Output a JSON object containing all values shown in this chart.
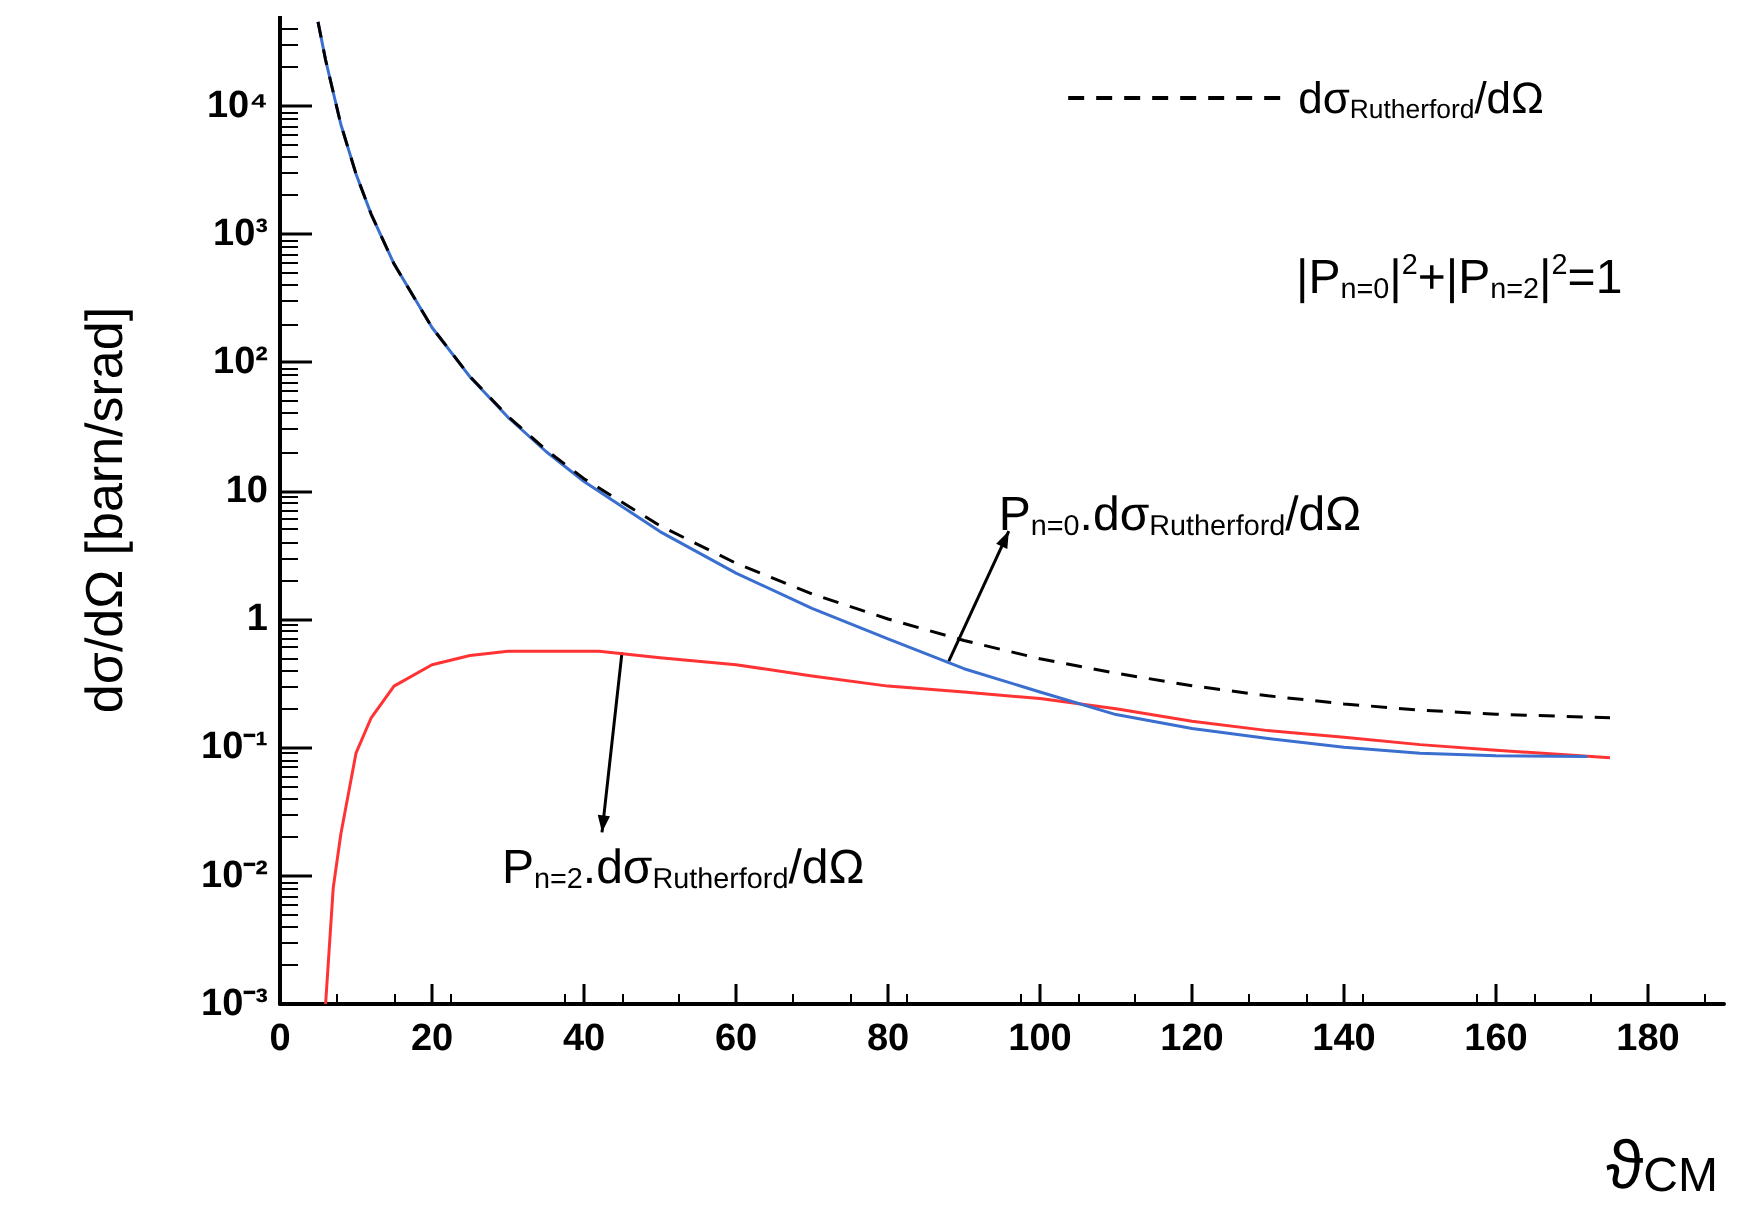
{
  "chart_data": {
    "type": "line",
    "xlabel": "ϑ$_{CM}$",
    "ylabel": "dσ/dΩ [barn/srad]",
    "log": "y",
    "xlim": [
      0,
      190
    ],
    "ylim": [
      0.001,
      50000
    ],
    "xticks": [
      0,
      20,
      40,
      60,
      80,
      100,
      120,
      140,
      160,
      180
    ],
    "yticks": [
      {
        "value": 0.001,
        "label": "10⁻³"
      },
      {
        "value": 0.01,
        "label": "10⁻²"
      },
      {
        "value": 0.1,
        "label": "10⁻¹"
      },
      1,
      10,
      {
        "value": 100,
        "label": "10²"
      },
      {
        "value": 1000,
        "label": "10³"
      },
      {
        "value": 10000,
        "label": "10⁴"
      }
    ],
    "legend": "top right",
    "grid": false,
    "marker": "none",
    "series": [
      {
        "name": "dσ$_{Rutherford}$/dΩ",
        "color": "#000000",
        "line_style": "dashed",
        "x": [
          5,
          6,
          8,
          10,
          12,
          15,
          20,
          25,
          30,
          35,
          40,
          50,
          60,
          70,
          80,
          90,
          100,
          110,
          120,
          130,
          140,
          150,
          160,
          175
        ],
        "values": [
          45000,
          22700,
          7170,
          2940,
          1425,
          586,
          187,
          77.6,
          37.9,
          20.8,
          12.4,
          5.33,
          2.72,
          1.57,
          1.0,
          0.68,
          0.49,
          0.378,
          0.302,
          0.252,
          0.218,
          0.195,
          0.181,
          0.17
        ]
      },
      {
        "color": "#3a6fd0",
        "line_style": "solid",
        "x": [
          5,
          6,
          8,
          10,
          12,
          15,
          20,
          25,
          30,
          35,
          40,
          50,
          60,
          70,
          80,
          90,
          100,
          110,
          120,
          130,
          140,
          150,
          160,
          172
        ],
        "values": [
          45000,
          22700,
          7170,
          2940,
          1425,
          586,
          187,
          77,
          37.3,
          20.2,
          11.8,
          4.8,
          2.28,
          1.21,
          0.7,
          0.41,
          0.27,
          0.18,
          0.14,
          0.117,
          0.1,
          0.09,
          0.086,
          0.085
        ]
      },
      {
        "color": "#ff3333",
        "line_style": "solid",
        "x": [
          6,
          7,
          8,
          10,
          12,
          15,
          20,
          25,
          30,
          35,
          42,
          50,
          60,
          70,
          80,
          90,
          100,
          110,
          120,
          130,
          140,
          150,
          160,
          175
        ],
        "values": [
          0.001,
          0.008,
          0.021,
          0.09,
          0.17,
          0.3,
          0.44,
          0.52,
          0.56,
          0.56,
          0.56,
          0.5,
          0.44,
          0.36,
          0.3,
          0.27,
          0.24,
          0.2,
          0.16,
          0.135,
          0.12,
          0.105,
          0.095,
          0.083
        ]
      }
    ],
    "annotations": [
      "|P$_{n=0}$|$^{2}$+|P$_{n=2}$|$^{2}$=1",
      {
        "text": "P$_{n=0}$.dσ$_{Rutherford}$/dΩ",
        "x": 88,
        "y": 0.47
      },
      {
        "text": "P$_{n=2}$.dσ$_{Rutherford}$/dΩ",
        "x": 45,
        "y": 0.55
      }
    ]
  }
}
